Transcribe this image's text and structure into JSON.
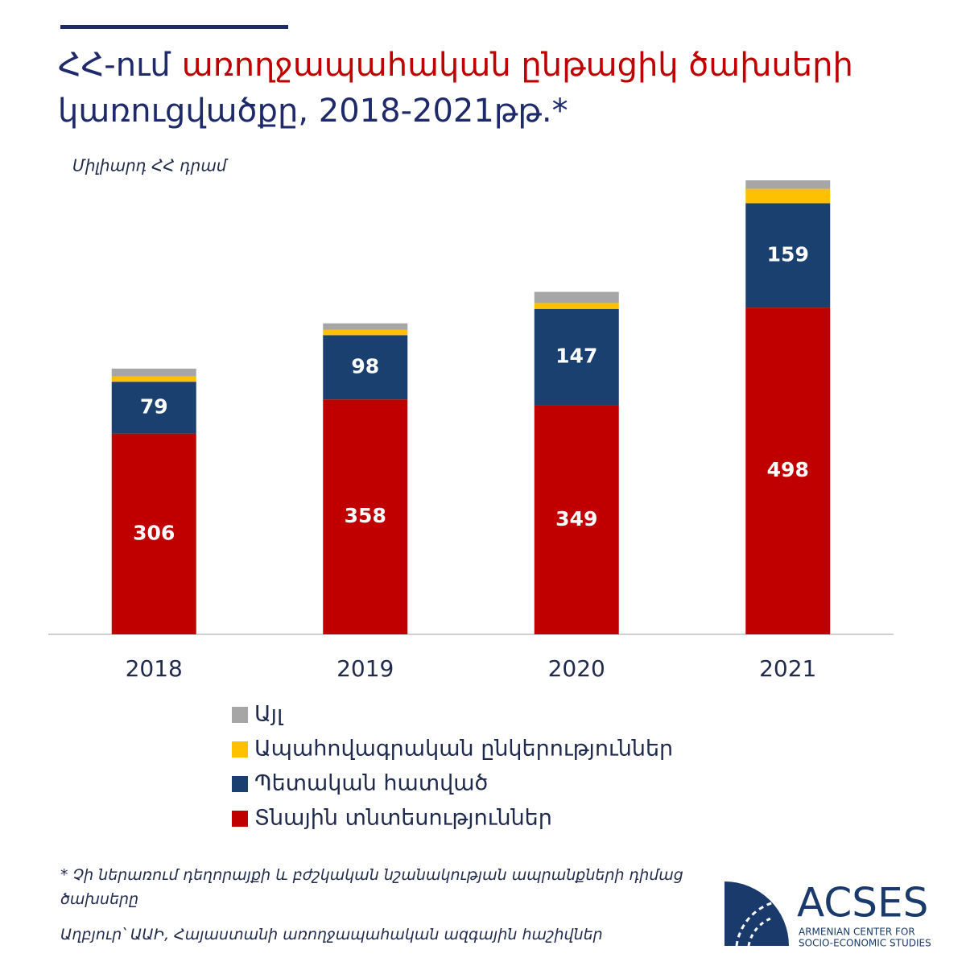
{
  "chart_data": {
    "type": "stacked-bar",
    "title": [
      "ՀՀ-ում",
      "առողջապահական ընթացիկ ծախսերի",
      "կառուցվածքը, 2018-2021թթ.*"
    ],
    "subtitle": "Միլիարդ ՀՀ դրամ",
    "categories": [
      "2018",
      "2019",
      "2020",
      "2021"
    ],
    "series": [
      {
        "name": "Տնային տնտեսություններ",
        "color": "#c00000",
        "values": [
          306,
          358,
          349,
          498
        ],
        "labels": true
      },
      {
        "name": "Պետական հատված",
        "color": "#1a4070",
        "values": [
          79,
          98,
          147,
          159
        ],
        "labels": true
      },
      {
        "name": "Ապահովագրական ընկերություններ",
        "color": "#ffc000",
        "values": [
          8,
          8,
          9,
          22
        ],
        "labels": false
      },
      {
        "name": "Այլ",
        "color": "#a6a6a6",
        "values": [
          12,
          10,
          17,
          13
        ],
        "labels": false
      }
    ],
    "legend": "bottom",
    "grid": false
  },
  "footnote": "* Չի ներառում դեղորայքի և բժշկական նշանակության ապրանքների դիմաց ծախսերը",
  "source": "Աղբյուր՝ ԱԱԻ, Հայաստանի առողջապահական ազգային հաշիվներ",
  "logo": {
    "name": "ACSES",
    "line1": "ARMENIAN CENTER FOR",
    "line2": "SOCIO-ECONOMIC STUDIES"
  }
}
